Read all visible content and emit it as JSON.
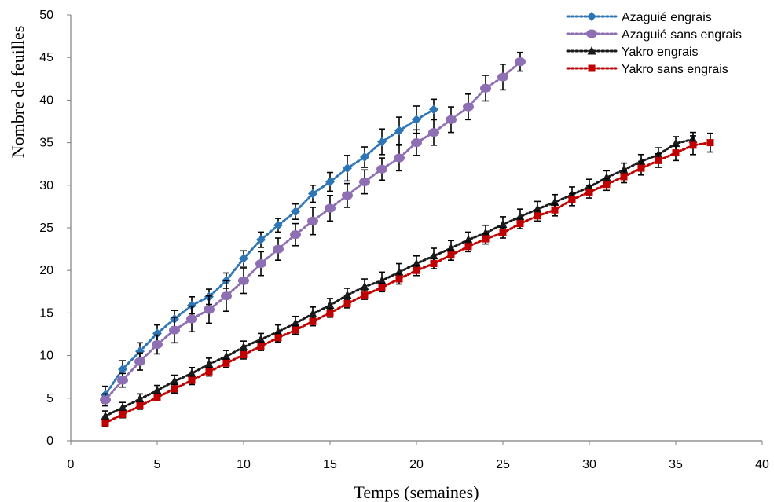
{
  "chart_data": {
    "type": "line",
    "title": "",
    "xlabel": "Temps (semaines)",
    "ylabel": "Nombre de feuilles",
    "xlim": [
      0,
      40
    ],
    "ylim": [
      0,
      50
    ],
    "xticks": [
      0,
      5,
      10,
      15,
      20,
      25,
      30,
      35,
      40
    ],
    "yticks": [
      0,
      5,
      10,
      15,
      20,
      25,
      30,
      35,
      40,
      45,
      50
    ],
    "grid": false,
    "legend_position": "top-right",
    "series": [
      {
        "name": "Azaguié engrais",
        "color": "#2e75b6",
        "marker": "diamond",
        "x": [
          2,
          3,
          4,
          5,
          6,
          7,
          8,
          9,
          10,
          11,
          12,
          13,
          14,
          15,
          16,
          17,
          18,
          19,
          20,
          21
        ],
        "y": [
          5.4,
          8.4,
          10.5,
          12.6,
          14.3,
          15.9,
          16.9,
          18.8,
          21.4,
          23.6,
          25.3,
          26.9,
          29.0,
          30.4,
          32.0,
          33.3,
          35.1,
          36.4,
          37.7,
          38.9
        ],
        "err": [
          1.0,
          1.0,
          1.0,
          1.0,
          1.0,
          1.0,
          0.9,
          0.9,
          0.9,
          0.9,
          0.8,
          0.9,
          1.0,
          1.1,
          1.5,
          1.2,
          1.5,
          1.6,
          1.6,
          1.2
        ]
      },
      {
        "name": "Azaguié sans engrais",
        "color": "#8e6fb3",
        "marker": "circle",
        "x": [
          2,
          3,
          4,
          5,
          6,
          7,
          8,
          9,
          10,
          11,
          12,
          13,
          14,
          15,
          16,
          17,
          18,
          19,
          20,
          21,
          22,
          23,
          24,
          25,
          26
        ],
        "y": [
          4.8,
          7.1,
          9.3,
          11.3,
          13.0,
          14.3,
          15.4,
          17.0,
          18.8,
          20.8,
          22.5,
          24.2,
          25.8,
          27.3,
          28.8,
          30.4,
          31.9,
          33.2,
          35.0,
          36.2,
          37.7,
          39.2,
          41.4,
          42.7,
          44.5
        ],
        "err": [
          0.7,
          0.8,
          1.0,
          1.1,
          1.5,
          1.5,
          1.6,
          1.8,
          1.5,
          1.4,
          1.3,
          1.3,
          1.6,
          1.5,
          1.4,
          1.4,
          1.3,
          1.5,
          1.5,
          1.5,
          1.5,
          1.5,
          1.5,
          1.5,
          1.1
        ]
      },
      {
        "name": "Yakro engrais",
        "color": "#1a1a1a",
        "marker": "triangle",
        "x": [
          2,
          3,
          4,
          5,
          6,
          7,
          8,
          9,
          10,
          11,
          12,
          13,
          14,
          15,
          16,
          17,
          18,
          19,
          20,
          21,
          22,
          23,
          24,
          25,
          26,
          27,
          28,
          29,
          30,
          31,
          32,
          33,
          34,
          35,
          36
        ],
        "y": [
          2.9,
          3.9,
          4.9,
          5.9,
          7.0,
          7.9,
          9.0,
          9.9,
          11.0,
          11.9,
          12.8,
          13.8,
          14.9,
          15.9,
          17.1,
          18.1,
          18.8,
          19.8,
          20.8,
          21.7,
          22.6,
          23.6,
          24.4,
          25.4,
          26.3,
          27.2,
          28.0,
          28.9,
          29.8,
          30.9,
          31.8,
          32.8,
          33.6,
          34.9,
          35.4
        ],
        "err": [
          0.6,
          0.6,
          0.6,
          0.6,
          0.7,
          0.7,
          0.7,
          0.7,
          0.7,
          0.7,
          0.8,
          0.8,
          0.8,
          0.8,
          0.8,
          0.9,
          1.0,
          1.0,
          0.9,
          0.9,
          0.9,
          0.9,
          0.9,
          0.9,
          0.9,
          0.9,
          0.9,
          0.9,
          0.9,
          0.8,
          0.8,
          0.8,
          0.8,
          0.8,
          0.8
        ]
      },
      {
        "name": "Yakro sans engrais",
        "color": "#c00000",
        "marker": "square",
        "x": [
          2,
          3,
          4,
          5,
          6,
          7,
          8,
          9,
          10,
          11,
          12,
          13,
          14,
          15,
          16,
          17,
          18,
          19,
          20,
          21,
          22,
          23,
          24,
          25,
          26,
          27,
          28,
          29,
          30,
          31,
          32,
          33,
          34,
          35,
          36,
          37
        ],
        "y": [
          2.1,
          3.1,
          4.1,
          5.1,
          6.1,
          7.1,
          8.1,
          9.1,
          10.1,
          11.1,
          12.1,
          13.0,
          14.0,
          15.0,
          16.1,
          17.1,
          18.0,
          19.0,
          20.0,
          20.8,
          21.8,
          22.8,
          23.7,
          24.4,
          25.5,
          26.4,
          27.1,
          28.3,
          29.2,
          30.1,
          31.0,
          32.0,
          32.9,
          33.8,
          34.7,
          35.0
        ],
        "err": [
          0.4,
          0.4,
          0.4,
          0.4,
          0.5,
          0.5,
          0.5,
          0.5,
          0.5,
          0.5,
          0.5,
          0.5,
          0.5,
          0.5,
          0.5,
          0.5,
          0.5,
          0.6,
          0.6,
          0.6,
          0.6,
          0.6,
          0.6,
          0.6,
          0.6,
          0.6,
          0.7,
          0.7,
          0.7,
          0.7,
          0.7,
          0.8,
          0.8,
          0.9,
          1.1,
          1.1
        ]
      }
    ]
  }
}
